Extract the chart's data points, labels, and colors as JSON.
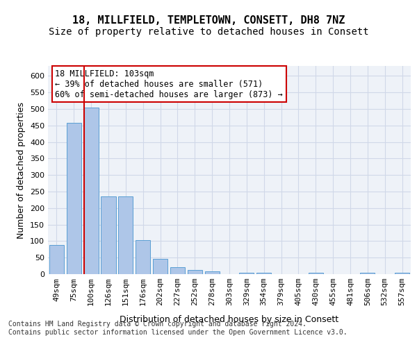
{
  "title_line1": "18, MILLFIELD, TEMPLETOWN, CONSETT, DH8 7NZ",
  "title_line2": "Size of property relative to detached houses in Consett",
  "xlabel": "Distribution of detached houses by size in Consett",
  "ylabel": "Number of detached properties",
  "categories": [
    "49sqm",
    "75sqm",
    "100sqm",
    "126sqm",
    "151sqm",
    "176sqm",
    "202sqm",
    "227sqm",
    "252sqm",
    "278sqm",
    "303sqm",
    "329sqm",
    "354sqm",
    "379sqm",
    "405sqm",
    "430sqm",
    "455sqm",
    "481sqm",
    "506sqm",
    "532sqm",
    "557sqm"
  ],
  "values": [
    89,
    458,
    503,
    236,
    236,
    103,
    47,
    20,
    13,
    8,
    0,
    5,
    5,
    0,
    0,
    5,
    0,
    0,
    5,
    0,
    5
  ],
  "bar_color": "#aec6e8",
  "bar_edge_color": "#5a9fd4",
  "property_line_color": "#cc0000",
  "property_line_x": 1.575,
  "annotation_text": "18 MILLFIELD: 103sqm\n← 39% of detached houses are smaller (571)\n60% of semi-detached houses are larger (873) →",
  "annotation_box_color": "#ffffff",
  "annotation_box_edge_color": "#cc0000",
  "ylim": [
    0,
    630
  ],
  "yticks": [
    0,
    50,
    100,
    150,
    200,
    250,
    300,
    350,
    400,
    450,
    500,
    550,
    600
  ],
  "grid_color": "#d0d8e8",
  "bg_color": "#eef2f8",
  "footer_text": "Contains HM Land Registry data © Crown copyright and database right 2024.\nContains public sector information licensed under the Open Government Licence v3.0.",
  "title_fontsize": 11,
  "subtitle_fontsize": 10,
  "axis_label_fontsize": 9,
  "tick_fontsize": 8,
  "annotation_fontsize": 8.5,
  "footer_fontsize": 7
}
